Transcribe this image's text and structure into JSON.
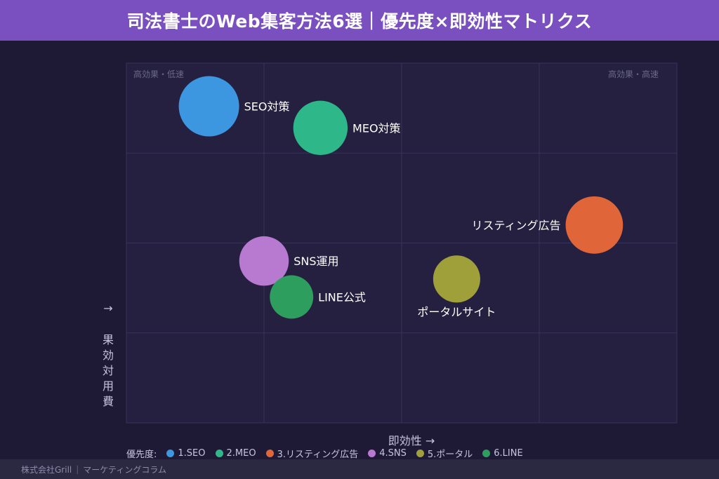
{
  "header": {
    "title": "司法書士のWeb集客方法6選｜優先度×即効性マトリクス"
  },
  "chart_data": {
    "type": "scatter",
    "xlabel": "即効性 →",
    "ylabel": "費用対効果 →",
    "xlim": [
      0,
      4
    ],
    "ylim": [
      0,
      4
    ],
    "grid": true,
    "corner_labels": {
      "top_left": "高効果・低速",
      "top_right": "高効果・高速"
    },
    "points": [
      {
        "name": "SEO対策",
        "x": 0.6,
        "y": 3.52,
        "size": 1.0,
        "color": "#3d96e0",
        "label_side": "right"
      },
      {
        "name": "MEO対策",
        "x": 1.41,
        "y": 3.28,
        "size": 0.9,
        "color": "#2eb88a",
        "label_side": "right"
      },
      {
        "name": "リスティング広告",
        "x": 3.4,
        "y": 2.2,
        "size": 0.95,
        "color": "#e0663a",
        "label_side": "left"
      },
      {
        "name": "SNS運用",
        "x": 1.0,
        "y": 1.8,
        "size": 0.82,
        "color": "#b87ad0",
        "label_side": "right"
      },
      {
        "name": "ポータルサイト",
        "x": 2.4,
        "y": 1.6,
        "size": 0.78,
        "color": "#a0a03a",
        "label_side": "below"
      },
      {
        "name": "LINE公式",
        "x": 1.2,
        "y": 1.4,
        "size": 0.72,
        "color": "#2e9e5e",
        "label_side": "right"
      }
    ]
  },
  "legend": {
    "title": "優先度:",
    "items": [
      {
        "label": "1.SEO",
        "color": "#3d96e0"
      },
      {
        "label": "2.MEO",
        "color": "#2eb88a"
      },
      {
        "label": "3.リスティング広告",
        "color": "#e0663a"
      },
      {
        "label": "4.SNS",
        "color": "#b87ad0"
      },
      {
        "label": "5.ポータル",
        "color": "#a0a03a"
      },
      {
        "label": "6.LINE",
        "color": "#2e9e5e"
      }
    ]
  },
  "footer": {
    "company": "株式会社Grill",
    "section": "マーケティングコラム"
  }
}
